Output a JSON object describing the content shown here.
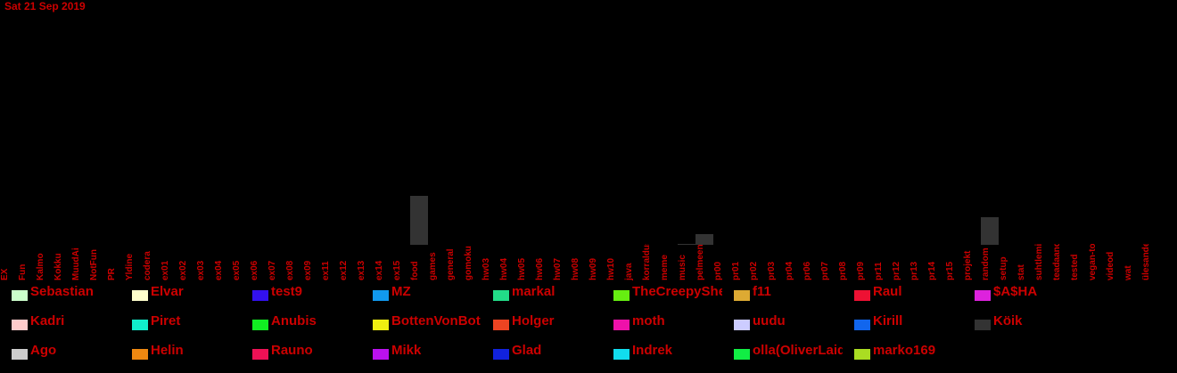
{
  "date": "Sat 21 Sep 2019",
  "chart_data": {
    "type": "bar",
    "categories": [
      "EX",
      "Fun",
      "Kalmo",
      "Kokku",
      "MuudAi",
      "NotFun",
      "PR",
      "Yldine",
      "codera",
      "ex01",
      "ex02",
      "ex03",
      "ex04",
      "ex05",
      "ex06",
      "ex07",
      "ex08",
      "ex09",
      "ex11",
      "ex12",
      "ex13",
      "ex14",
      "ex15",
      "food",
      "games",
      "general",
      "gomoku",
      "hw03",
      "hw04",
      "hw05",
      "hw06",
      "hw07",
      "hw08",
      "hw09",
      "hw10",
      "java",
      "korraldus",
      "meme",
      "music",
      "pelmeenid",
      "pr00",
      "pr01",
      "pr02",
      "pr03",
      "pr04",
      "pr06",
      "pr07",
      "pr08",
      "pr09",
      "pr11",
      "pr12",
      "pr13",
      "pr14",
      "pr15",
      "projekt",
      "random",
      "setup",
      "stat",
      "suhtlemine",
      "teadaanded",
      "tested",
      "vegan-toidud",
      "videod",
      "wat",
      "ülesanded"
    ],
    "values": [
      0,
      0,
      0,
      0,
      0,
      0,
      0,
      0,
      0,
      0,
      0,
      0,
      0,
      0,
      0,
      0,
      0,
      0,
      0,
      0,
      0,
      0,
      0,
      55,
      0,
      0,
      0,
      0,
      0,
      0,
      0,
      0,
      0,
      0,
      0,
      0,
      0,
      0,
      1,
      12,
      0,
      0,
      0,
      0,
      0,
      0,
      0,
      0,
      0,
      0,
      0,
      0,
      0,
      0,
      0,
      31,
      0,
      0,
      0,
      0,
      0,
      0,
      0,
      0,
      0
    ],
    "bar_colors": {
      "23": "#333333",
      "38": "#333333",
      "39": "#333333",
      "55": "#333333"
    },
    "ylim": [
      0,
      55
    ],
    "title": "",
    "xlabel": "",
    "ylabel": "",
    "grid": false,
    "legend_position": "bottom"
  },
  "legend": [
    {
      "name": "Sebastian",
      "color": "#ccffcc"
    },
    {
      "name": "Elvar",
      "color": "#ffffcc"
    },
    {
      "name": "test9",
      "color": "#3311ee"
    },
    {
      "name": "MZ",
      "color": "#1199ee"
    },
    {
      "name": "markal",
      "color": "#22dd88"
    },
    {
      "name": "TheCreepySheep",
      "color": "#66ee11"
    },
    {
      "name": "f11",
      "color": "#ddaa33"
    },
    {
      "name": "Raul",
      "color": "#ee1133"
    },
    {
      "name": "$A$HA",
      "color": "#dd22dd"
    },
    {
      "name": "Kadri",
      "color": "#ffcccc"
    },
    {
      "name": "Piret",
      "color": "#11eecc"
    },
    {
      "name": "Anubis",
      "color": "#11ee22"
    },
    {
      "name": "BottenVonBot",
      "color": "#eeee11"
    },
    {
      "name": "Holger",
      "color": "#ee4422"
    },
    {
      "name": "moth",
      "color": "#ee11aa"
    },
    {
      "name": "uudu",
      "color": "#ccccff"
    },
    {
      "name": "Kirill",
      "color": "#1166ee"
    },
    {
      "name": "Köik",
      "color": "#333333"
    },
    {
      "name": "Ago",
      "color": "#cccccc"
    },
    {
      "name": "Helin",
      "color": "#ee8811"
    },
    {
      "name": "Rauno",
      "color": "#ee1155"
    },
    {
      "name": "Mikk",
      "color": "#bb11ee"
    },
    {
      "name": "Glad",
      "color": "#1122dd"
    },
    {
      "name": "Indrek",
      "color": "#11ddee"
    },
    {
      "name": "olla(OliverLaidla)",
      "color": "#11ee44"
    },
    {
      "name": "marko169",
      "color": "#aadd22"
    }
  ]
}
